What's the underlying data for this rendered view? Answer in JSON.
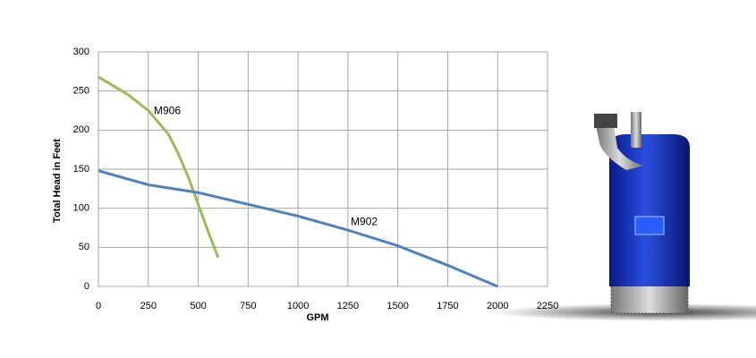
{
  "chart_data": {
    "type": "line",
    "x_label": "GPM",
    "y_label": "Total Head in Feet",
    "xlim": [
      0,
      2250
    ],
    "xticks": [
      0,
      250,
      500,
      750,
      1000,
      1250,
      1500,
      1750,
      2000,
      2250
    ],
    "ylim": [
      0,
      300
    ],
    "yticks": [
      0,
      50,
      100,
      150,
      200,
      250,
      300
    ],
    "grid": true,
    "series": [
      {
        "name": "M906",
        "color": "#9bbb59",
        "x": [
          0,
          150,
          250,
          350,
          400,
          450,
          500,
          550,
          600
        ],
        "values": [
          268,
          245,
          225,
          195,
          170,
          140,
          105,
          70,
          37
        ]
      },
      {
        "name": "M902",
        "color": "#4f81bd",
        "x": [
          0,
          250,
          500,
          750,
          1000,
          1250,
          1500,
          1750,
          2000
        ],
        "values": [
          148,
          130,
          120,
          105,
          90,
          72,
          52,
          27,
          0
        ]
      }
    ]
  }
}
